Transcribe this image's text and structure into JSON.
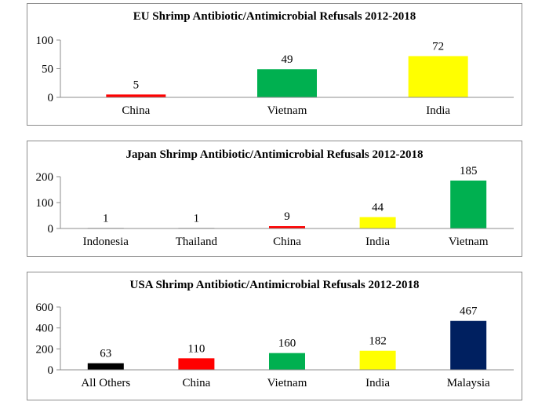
{
  "chart_data": [
    {
      "type": "bar",
      "title": "EU Shrimp Antibiotic/Antimicrobial Refusals 2012-2018",
      "categories": [
        "China",
        "Vietnam",
        "India"
      ],
      "values": [
        5,
        49,
        72
      ],
      "colors": [
        "#ff0000",
        "#00b050",
        "#ffff00"
      ],
      "ylim": [
        0,
        100
      ],
      "yticks": [
        "0",
        "50",
        "100"
      ],
      "xlabel": "",
      "ylabel": ""
    },
    {
      "type": "bar",
      "title": "Japan Shrimp Antibiotic/Antimicrobial Refusals 2012-2018",
      "categories": [
        "Indonesia",
        "Thailand",
        "China",
        "India",
        "Vietnam"
      ],
      "values": [
        1,
        1,
        9,
        44,
        185
      ],
      "colors": [
        "#000000",
        "#000000",
        "#ff0000",
        "#ffff00",
        "#00b050"
      ],
      "ylim": [
        0,
        200
      ],
      "yticks": [
        "0",
        "100",
        "200"
      ],
      "xlabel": "",
      "ylabel": ""
    },
    {
      "type": "bar",
      "title": "USA Shrimp Antibiotic/Antimicrobial Refusals 2012-2018",
      "categories": [
        "All Others",
        "China",
        "Vietnam",
        "India",
        "Malaysia"
      ],
      "values": [
        63,
        110,
        160,
        182,
        467
      ],
      "colors": [
        "#000000",
        "#ff0000",
        "#00b050",
        "#ffff00",
        "#002060"
      ],
      "ylim": [
        0,
        600
      ],
      "yticks": [
        "0",
        "200",
        "400",
        "600"
      ],
      "xlabel": "",
      "ylabel": ""
    }
  ]
}
